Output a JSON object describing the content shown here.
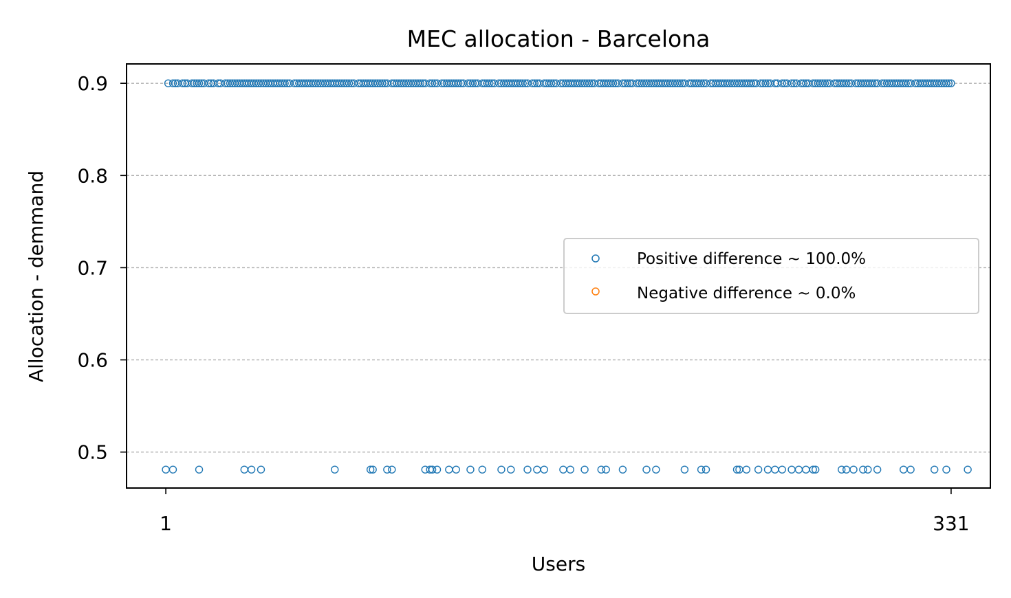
{
  "chart_data": {
    "type": "scatter",
    "title": "MEC allocation - Barcelona",
    "xlabel": "Users",
    "ylabel": "Allocation - demmand",
    "xlim": [
      -15.5,
      347.5
    ],
    "ylim": [
      0.461,
      0.921
    ],
    "xticks": [
      1,
      331
    ],
    "yticks": [
      0.5,
      0.6,
      0.7,
      0.8,
      0.9
    ],
    "grid": "y-dashed",
    "legend_position": "center-right",
    "series": [
      {
        "name": "Positive difference ~ 100.0%",
        "color": "#1f77b4",
        "marker": "open-circle",
        "x_high": [
          2,
          4,
          5,
          6,
          8,
          9,
          10,
          12,
          13,
          14,
          15,
          16,
          17,
          19,
          20,
          21,
          23,
          24,
          26,
          27,
          28,
          29,
          30,
          31,
          32,
          33,
          34,
          35,
          36,
          37,
          38,
          39,
          40,
          41,
          42,
          43,
          44,
          45,
          46,
          47,
          48,
          49,
          50,
          51,
          52,
          53,
          55,
          56,
          57,
          58,
          59,
          60,
          61,
          62,
          63,
          64,
          65,
          66,
          67,
          68,
          69,
          70,
          71,
          72,
          73,
          74,
          75,
          76,
          77,
          78,
          79,
          80,
          82,
          83,
          84,
          85,
          86,
          87,
          88,
          89,
          90,
          91,
          92,
          93,
          94,
          96,
          97,
          98,
          99,
          100,
          101,
          102,
          103,
          104,
          105,
          106,
          107,
          108,
          109,
          110,
          112,
          113,
          114,
          115,
          117,
          118,
          119,
          120,
          121,
          122,
          123,
          124,
          125,
          126,
          128,
          129,
          130,
          131,
          132,
          134,
          135,
          136,
          137,
          138,
          139,
          141,
          142,
          143,
          144,
          145,
          146,
          147,
          148,
          149,
          150,
          151,
          152,
          153,
          155,
          156,
          157,
          158,
          160,
          161,
          162,
          163,
          164,
          165,
          167,
          168,
          169,
          170,
          171,
          172,
          173,
          174,
          175,
          176,
          177,
          178,
          179,
          180,
          181,
          183,
          184,
          185,
          186,
          187,
          188,
          189,
          190,
          191,
          193,
          194,
          195,
          196,
          197,
          199,
          200,
          201,
          202,
          203,
          204,
          205,
          206,
          207,
          208,
          209,
          210,
          211,
          212,
          213,
          214,
          215,
          216,
          217,
          218,
          219,
          221,
          222,
          223,
          224,
          225,
          226,
          227,
          228,
          230,
          231,
          232,
          233,
          234,
          235,
          236,
          237,
          238,
          239,
          240,
          241,
          242,
          243,
          244,
          245,
          246,
          247,
          248,
          249,
          251,
          252,
          253,
          254,
          255,
          257,
          258,
          260,
          261,
          262,
          264,
          265,
          266,
          268,
          269,
          270,
          271,
          273,
          274,
          275,
          276,
          277,
          278,
          279,
          280,
          282,
          283,
          284,
          285,
          286,
          287,
          288,
          289,
          291,
          292,
          293,
          294,
          295,
          296,
          297,
          298,
          299,
          300,
          302,
          303,
          304,
          305,
          306,
          307,
          308,
          309,
          310,
          311,
          312,
          313,
          314,
          316,
          317,
          318,
          319,
          320,
          321,
          322,
          323,
          324,
          325,
          326,
          327,
          328,
          329,
          330,
          331
        ],
        "y_high": 0.9,
        "x_low": [
          1,
          4,
          15,
          34,
          37,
          41,
          72,
          87,
          88,
          94,
          96,
          110,
          112,
          113,
          115,
          120,
          123,
          129,
          134,
          142,
          146,
          153,
          157,
          160,
          168,
          171,
          177,
          184,
          186,
          193,
          203,
          207,
          219,
          226,
          228,
          241,
          242,
          245,
          250,
          254,
          257,
          260,
          264,
          267,
          270,
          273,
          274,
          285,
          287,
          290,
          294,
          296,
          300,
          311,
          314,
          324,
          329,
          338
        ],
        "y_low": 0.481
      },
      {
        "name": "Negative difference ~ 0.0%",
        "color": "#ff7f0e",
        "marker": "open-circle",
        "x": [],
        "y": []
      }
    ]
  }
}
